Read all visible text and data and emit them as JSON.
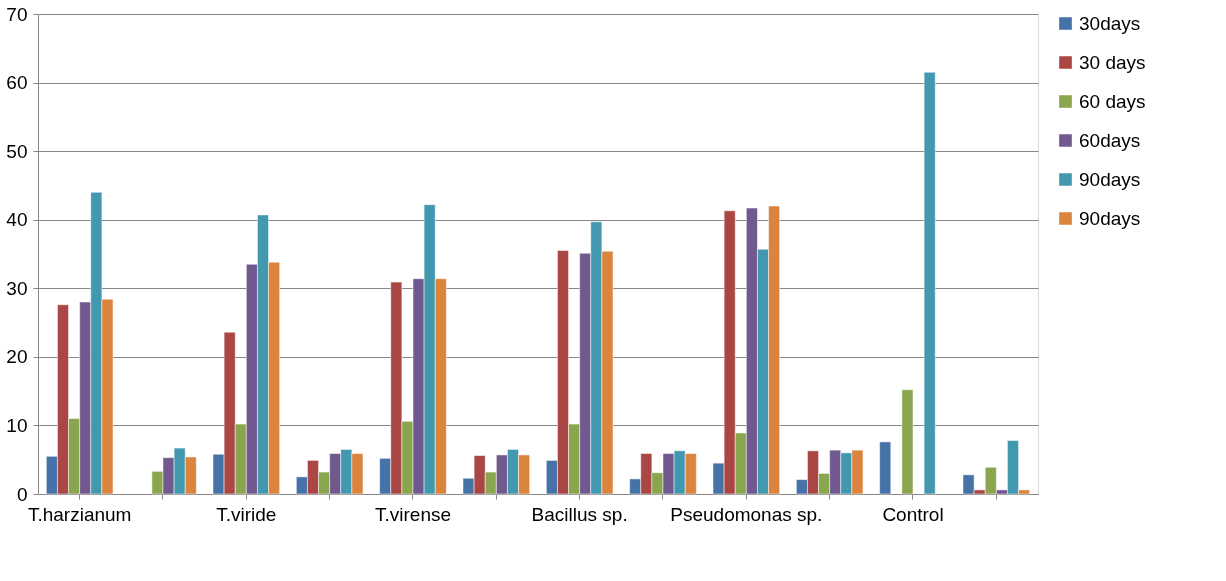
{
  "chart_data": {
    "type": "bar",
    "categories": [
      "T.harzianum",
      null,
      "T.viride",
      null,
      "T.virense",
      null,
      "Bacillus sp.",
      null,
      "Pseudomonas sp.",
      null,
      "Control",
      null
    ],
    "series": [
      {
        "name": "30days",
        "color": "#4572a7",
        "values": [
          5.5,
          null,
          5.8,
          2.5,
          5.2,
          2.3,
          4.9,
          2.2,
          4.5,
          2.1,
          7.6,
          2.8
        ]
      },
      {
        "name": "30 days",
        "color": "#aa4643",
        "values": [
          27.6,
          null,
          23.6,
          4.9,
          30.9,
          5.6,
          35.5,
          5.9,
          41.3,
          6.3,
          null,
          0.6
        ]
      },
      {
        "name": "60 days",
        "color": "#89a54e",
        "values": [
          11.0,
          3.3,
          10.2,
          3.2,
          10.6,
          3.2,
          10.2,
          3.1,
          8.9,
          3.0,
          15.2,
          3.9
        ]
      },
      {
        "name": "60days",
        "color": "#71588f",
        "values": [
          28.0,
          5.3,
          33.5,
          5.9,
          31.4,
          5.7,
          35.1,
          5.9,
          41.7,
          6.4,
          null,
          0.6
        ]
      },
      {
        "name": "90days",
        "color": "#4198af",
        "values": [
          44.0,
          6.7,
          40.7,
          6.5,
          42.2,
          6.5,
          39.7,
          6.3,
          35.7,
          6.0,
          61.5,
          7.8
        ]
      },
      {
        "name": "90days",
        "color": "#db843d",
        "values": [
          28.4,
          5.4,
          33.8,
          5.9,
          31.4,
          5.7,
          35.4,
          5.9,
          42.0,
          6.4,
          null,
          0.6
        ]
      }
    ],
    "ylim": [
      0,
      70
    ],
    "yticks": [
      0,
      10,
      20,
      30,
      40,
      50,
      60,
      70
    ],
    "grid": "y",
    "legend": "right"
  }
}
